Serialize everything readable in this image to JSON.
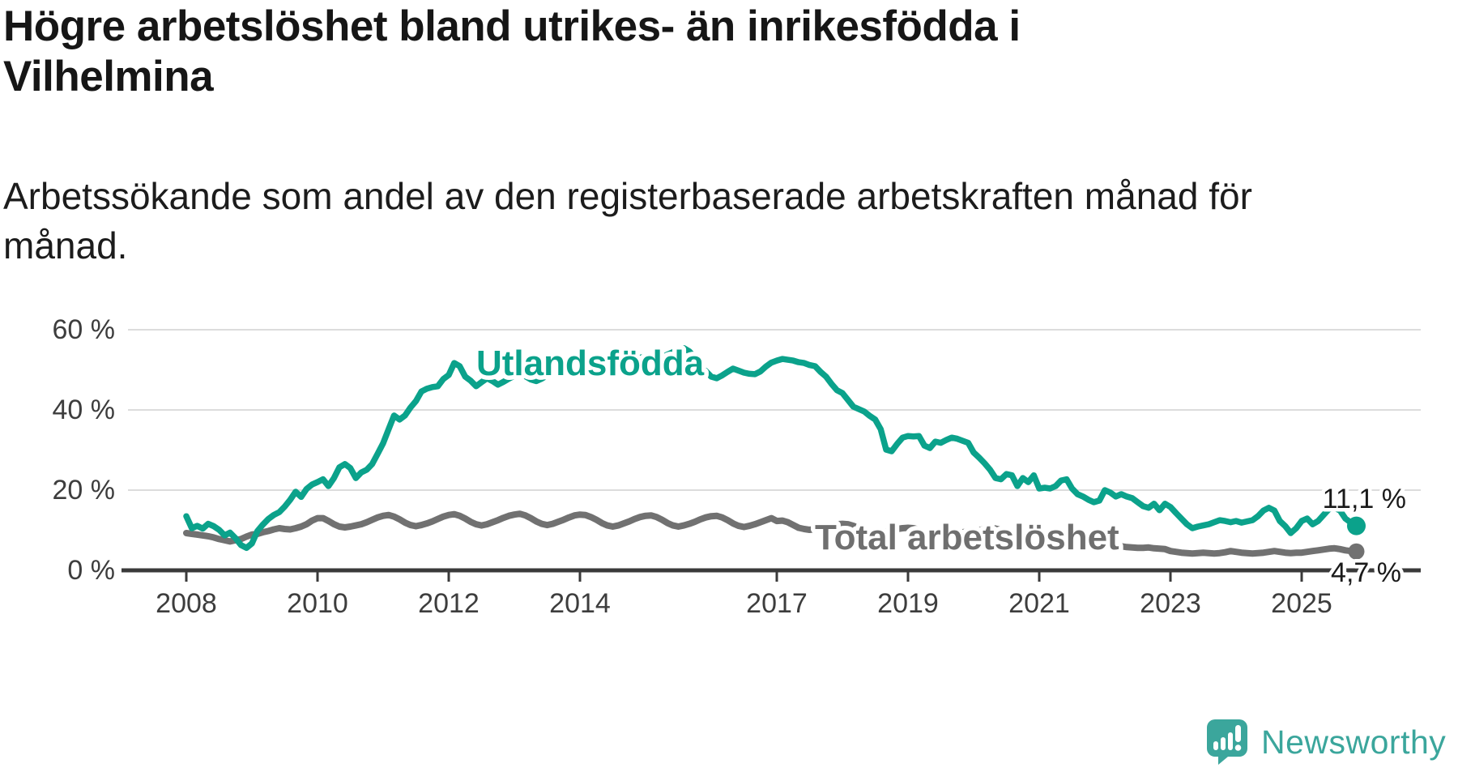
{
  "title": {
    "line1": "Högre arbetslöshet bland utrikes- än inrikesfödda i",
    "line2": "Vilhelmina",
    "full": "Högre arbetslöshet bland utrikes- än inrikesfödda i Vilhelmina"
  },
  "subtitle": {
    "line1": "Arbetssökande som andel av den registerbaserade arbetskraften månad för",
    "line2": "månad.",
    "full": "Arbetssökande som andel av den registerbaserade arbetskraften månad för månad."
  },
  "chart_data": {
    "type": "line",
    "x_unit": "month",
    "x_range": [
      "2008-01",
      "2025-11"
    ],
    "y_unit": "%",
    "ylim": [
      0,
      63
    ],
    "grid": "horizontal-only",
    "y_ticks": [
      {
        "label": "60 %",
        "value": 60
      },
      {
        "label": "40 %",
        "value": 40
      },
      {
        "label": "20 %",
        "value": 20
      },
      {
        "label": "0 %",
        "value": 0
      }
    ],
    "x_ticks": [
      {
        "label": "2008",
        "year": 2008
      },
      {
        "label": "2010",
        "year": 2010
      },
      {
        "label": "2012",
        "year": 2012
      },
      {
        "label": "2014",
        "year": 2014
      },
      {
        "label": "2017",
        "year": 2017
      },
      {
        "label": "2019",
        "year": 2019
      },
      {
        "label": "2021",
        "year": 2021
      },
      {
        "label": "2023",
        "year": 2023
      },
      {
        "label": "2025",
        "year": 2025
      }
    ],
    "series": [
      {
        "name": "Utlandsfödda",
        "color": "#0ba28b",
        "end_label": "11,1 %",
        "end_value": 11.1,
        "values": [
          13.5,
          10.5,
          11.1,
          10.4,
          11.6,
          11.0,
          10.1,
          8.7,
          9.4,
          8.0,
          6.3,
          5.6,
          6.7,
          9.8,
          11.4,
          12.8,
          13.8,
          14.5,
          15.9,
          17.6,
          19.6,
          18.3,
          20.3,
          21.4,
          22.0,
          22.7,
          21.0,
          23.0,
          25.7,
          26.5,
          25.5,
          23.0,
          24.4,
          25.1,
          26.5,
          29.1,
          31.7,
          35.2,
          38.6,
          37.6,
          38.6,
          40.6,
          42.2,
          44.6,
          45.3,
          45.7,
          45.9,
          47.7,
          48.7,
          51.7,
          50.9,
          48.3,
          47.3,
          45.9,
          46.9,
          47.9,
          47.2,
          46.3,
          47.0,
          47.8,
          48.5,
          49.0,
          48.4,
          47.6,
          47.2,
          47.8,
          48.6,
          49.2,
          49.8,
          50.2,
          49.6,
          49.0,
          49.4,
          50.0,
          50.6,
          51.0,
          50.4,
          49.8,
          50.2,
          50.8,
          51.4,
          52.0,
          52.6,
          53.0,
          53.4,
          53.0,
          52.6,
          53.2,
          53.8,
          54.4,
          55.0,
          55.4,
          54.6,
          53.0,
          50.5,
          49.7,
          48.3,
          47.9,
          48.6,
          49.5,
          50.3,
          49.8,
          49.3,
          49.0,
          48.9,
          49.6,
          50.8,
          51.8,
          52.3,
          52.7,
          52.5,
          52.3,
          51.9,
          51.7,
          51.2,
          50.9,
          49.5,
          48.3,
          46.5,
          44.9,
          44.2,
          42.5,
          40.8,
          40.2,
          39.6,
          38.5,
          37.6,
          35.2,
          30.1,
          29.7,
          31.5,
          33.1,
          33.5,
          33.4,
          33.5,
          31.1,
          30.5,
          32.1,
          31.8,
          32.5,
          33.1,
          32.8,
          32.3,
          31.8,
          29.4,
          28.1,
          26.7,
          25.1,
          23.0,
          22.7,
          24.0,
          23.7,
          21.0,
          23.0,
          22.0,
          23.7,
          20.4,
          20.6,
          20.4,
          21.0,
          22.4,
          22.7,
          20.4,
          19.0,
          18.4,
          17.6,
          17.0,
          17.4,
          20.0,
          19.4,
          18.4,
          19.0,
          18.4,
          18.0,
          17.0,
          16.0,
          15.6,
          16.6,
          15.0,
          16.6,
          15.8,
          14.3,
          12.9,
          11.5,
          10.5,
          10.9,
          11.2,
          11.5,
          12.0,
          12.5,
          12.3,
          12.0,
          12.3,
          11.9,
          12.2,
          12.5,
          13.5,
          14.9,
          15.6,
          14.9,
          12.3,
          11.0,
          9.3,
          10.5,
          12.3,
          12.9,
          11.5,
          12.3,
          13.8,
          15.3,
          15.6,
          14.9,
          12.9,
          11.9,
          11.1
        ]
      },
      {
        "name": "Total arbetslöshet",
        "color": "#717171",
        "end_label": "4,7 %",
        "end_value": 4.7,
        "values": [
          9.3,
          9.1,
          8.9,
          8.7,
          8.5,
          8.2,
          7.8,
          7.5,
          7.2,
          7.5,
          7.8,
          8.4,
          8.9,
          9.1,
          9.5,
          9.8,
          10.2,
          10.5,
          10.3,
          10.2,
          10.5,
          10.9,
          11.5,
          12.4,
          13.0,
          13.0,
          12.3,
          11.5,
          10.9,
          10.7,
          10.9,
          11.2,
          11.5,
          12.0,
          12.6,
          13.2,
          13.6,
          13.8,
          13.4,
          12.7,
          11.9,
          11.3,
          11.0,
          11.3,
          11.7,
          12.2,
          12.8,
          13.4,
          13.8,
          14.0,
          13.6,
          12.9,
          12.1,
          11.5,
          11.2,
          11.5,
          12.0,
          12.5,
          13.1,
          13.6,
          13.9,
          14.1,
          13.7,
          13.0,
          12.2,
          11.6,
          11.3,
          11.6,
          12.1,
          12.6,
          13.2,
          13.7,
          13.9,
          13.8,
          13.3,
          12.6,
          11.8,
          11.2,
          10.9,
          11.2,
          11.7,
          12.2,
          12.8,
          13.3,
          13.6,
          13.7,
          13.3,
          12.6,
          11.8,
          11.2,
          10.9,
          11.2,
          11.6,
          12.1,
          12.7,
          13.2,
          13.5,
          13.6,
          13.2,
          12.5,
          11.7,
          11.1,
          10.8,
          11.1,
          11.5,
          12.0,
          12.5,
          13.0,
          12.3,
          12.4,
          12.0,
          11.3,
          10.6,
          10.3,
          10.1,
          10.3,
          10.6,
          10.9,
          11.2,
          11.5,
          11.6,
          11.5,
          11.1,
          10.5,
          9.9,
          9.5,
          9.3,
          9.5,
          9.7,
          10.0,
          10.3,
          10.5,
          10.6,
          10.5,
          10.1,
          9.6,
          9.1,
          8.8,
          8.6,
          8.8,
          9.0,
          9.2,
          9.5,
          9.7,
          9.9,
          10.0,
          10.3,
          10.6,
          10.4,
          10.1,
          9.8,
          9.6,
          9.3,
          9.1,
          8.9,
          8.8,
          8.8,
          8.7,
          8.5,
          8.2,
          7.9,
          7.6,
          7.4,
          7.3,
          7.2,
          7.0,
          6.9,
          6.8,
          6.6,
          6.4,
          6.2,
          6.0,
          5.8,
          5.7,
          5.6,
          5.6,
          5.7,
          5.5,
          5.4,
          5.3,
          4.8,
          4.6,
          4.4,
          4.3,
          4.2,
          4.3,
          4.4,
          4.3,
          4.2,
          4.3,
          4.5,
          4.8,
          4.6,
          4.4,
          4.3,
          4.2,
          4.3,
          4.4,
          4.6,
          4.8,
          4.6,
          4.4,
          4.3,
          4.4,
          4.4,
          4.6,
          4.8,
          5.0,
          5.2,
          5.4,
          5.5,
          5.3,
          5.0,
          4.8,
          4.7
        ]
      }
    ],
    "colors": {
      "accent_teal": "#0ba28b",
      "gray": "#717171",
      "axis": "#3a3a3a",
      "gridline": "#dcdcdc"
    }
  },
  "branding": {
    "logo_text": "Newsworthy",
    "logo_color": "#3ba69c",
    "icon": "newsworthy-speech-bubble-bar-chart-icon"
  }
}
